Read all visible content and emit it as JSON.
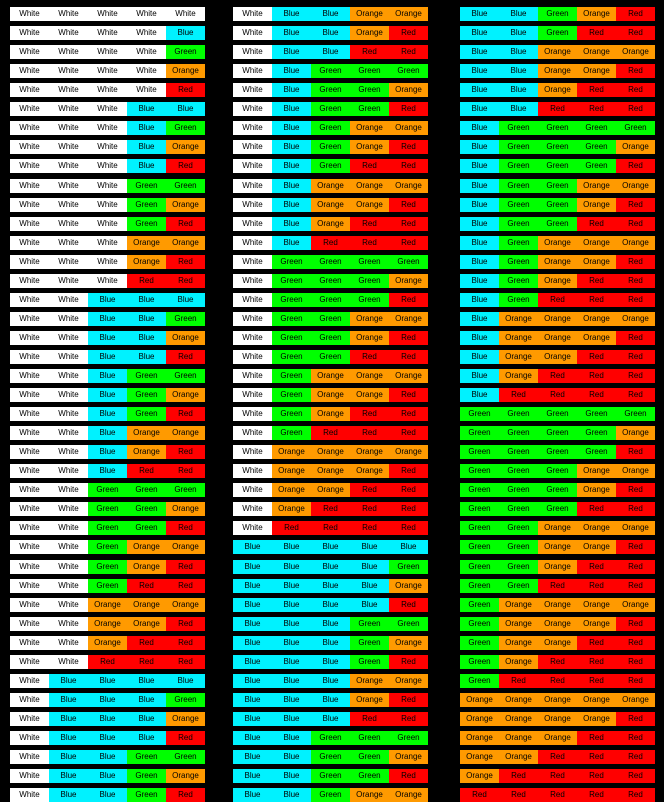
{
  "colors": {
    "White": "#ffffff",
    "Blue": "#00f2ff",
    "Green": "#00ff00",
    "Orange": "#ff9a00",
    "Red": "#ff0000"
  },
  "palette": [
    "White",
    "Blue",
    "Green",
    "Orange",
    "Red"
  ],
  "labels": {
    "White": "White",
    "Blue": "Blue",
    "Green": "Green",
    "Orange": "Orange",
    "Red": "Red"
  },
  "slots": 5
}
